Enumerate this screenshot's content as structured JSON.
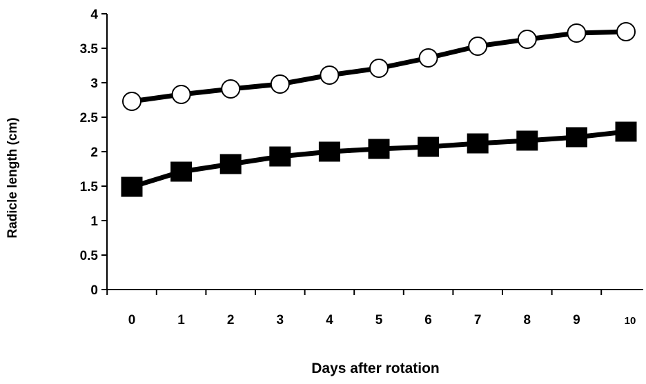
{
  "chart_data": {
    "type": "line",
    "title": "",
    "xlabel": "Days after rotation",
    "ylabel": "Radicle length (cm)",
    "x": [
      0,
      1,
      2,
      3,
      4,
      5,
      6,
      7,
      8,
      9,
      10
    ],
    "x_tick_labels": [
      "0",
      "1",
      "2",
      "3",
      "4",
      "5",
      "6",
      "7",
      "8",
      "9",
      "10"
    ],
    "xlim": [
      0,
      10
    ],
    "ylim": [
      0,
      4
    ],
    "y_ticks": [
      0,
      0.5,
      1,
      1.5,
      2,
      2.5,
      3,
      3.5,
      4
    ],
    "y_tick_labels": [
      "0",
      "0.5",
      "1",
      "1.5",
      "2",
      "2.5",
      "3",
      "3.5",
      "4"
    ],
    "grid": false,
    "legend": "none",
    "series": [
      {
        "marker": "open-circle",
        "color": "#000000",
        "values": [
          2.73,
          2.83,
          2.91,
          2.98,
          3.11,
          3.21,
          3.36,
          3.53,
          3.63,
          3.72,
          3.74
        ]
      },
      {
        "marker": "filled-square",
        "color": "#000000",
        "values": [
          1.49,
          1.71,
          1.82,
          1.93,
          2.0,
          2.04,
          2.07,
          2.12,
          2.16,
          2.21,
          2.29
        ]
      }
    ]
  }
}
